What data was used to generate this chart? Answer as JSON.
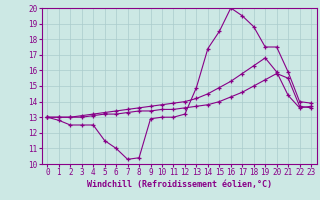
{
  "title": "",
  "xlabel": "Windchill (Refroidissement éolien,°C)",
  "ylabel": "",
  "background_color": "#cce8e4",
  "line_color": "#880088",
  "xlim": [
    -0.5,
    23.5
  ],
  "ylim": [
    10,
    20
  ],
  "xticks": [
    0,
    1,
    2,
    3,
    4,
    5,
    6,
    7,
    8,
    9,
    10,
    11,
    12,
    13,
    14,
    15,
    16,
    17,
    18,
    19,
    20,
    21,
    22,
    23
  ],
  "yticks": [
    10,
    11,
    12,
    13,
    14,
    15,
    16,
    17,
    18,
    19,
    20
  ],
  "line1_x": [
    0,
    1,
    2,
    3,
    4,
    5,
    6,
    7,
    8,
    9,
    10,
    11,
    12,
    13,
    14,
    15,
    16,
    17,
    18,
    19,
    20,
    21,
    22,
    23
  ],
  "line1_y": [
    13.0,
    12.8,
    12.5,
    12.5,
    12.5,
    11.5,
    11.0,
    10.3,
    10.4,
    12.9,
    13.0,
    13.0,
    13.2,
    14.9,
    17.4,
    18.5,
    20.0,
    19.5,
    18.8,
    17.5,
    17.5,
    15.9,
    14.0,
    13.9
  ],
  "line2_x": [
    0,
    1,
    2,
    3,
    4,
    5,
    6,
    7,
    8,
    9,
    10,
    11,
    12,
    13,
    14,
    15,
    16,
    17,
    18,
    19,
    20,
    21,
    22,
    23
  ],
  "line2_y": [
    13.0,
    13.0,
    13.0,
    13.1,
    13.2,
    13.3,
    13.4,
    13.5,
    13.6,
    13.7,
    13.8,
    13.9,
    14.0,
    14.2,
    14.5,
    14.9,
    15.3,
    15.8,
    16.3,
    16.8,
    15.9,
    14.4,
    13.6,
    13.7
  ],
  "line3_x": [
    0,
    1,
    2,
    3,
    4,
    5,
    6,
    7,
    8,
    9,
    10,
    11,
    12,
    13,
    14,
    15,
    16,
    17,
    18,
    19,
    20,
    21,
    22,
    23
  ],
  "line3_y": [
    13.0,
    13.0,
    13.0,
    13.0,
    13.1,
    13.2,
    13.2,
    13.3,
    13.4,
    13.4,
    13.5,
    13.5,
    13.6,
    13.7,
    13.8,
    14.0,
    14.3,
    14.6,
    15.0,
    15.4,
    15.8,
    15.5,
    13.7,
    13.6
  ],
  "grid_color": "#aacccc",
  "tick_color": "#880088",
  "label_fontsize": 5.5,
  "xlabel_fontsize": 6.0
}
